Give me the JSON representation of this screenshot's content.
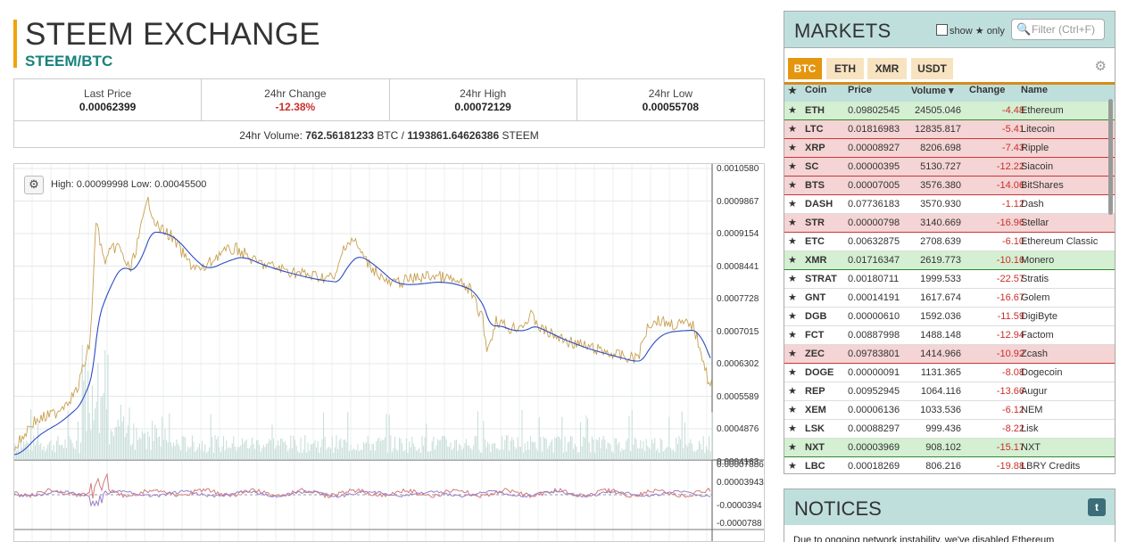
{
  "header": {
    "title": "STEEM EXCHANGE",
    "pair": "STEEM/BTC"
  },
  "stats": {
    "last_price_label": "Last Price",
    "last_price": "0.00062399",
    "change_label": "24hr Change",
    "change": "-12.38%",
    "high_label": "24hr High",
    "high": "0.00072129",
    "low_label": "24hr Low",
    "low": "0.00055708",
    "volume_prefix": "24hr Volume: ",
    "volume_btc": "762.56181233",
    "volume_btc_unit": " BTC / ",
    "volume_steem": "1193861.64626386",
    "volume_steem_unit": " STEEM"
  },
  "chart": {
    "high_low_text": "High: 0.00099998   Low: 0.00045500",
    "price_ticks": [
      "0.0010580",
      "0.0009867",
      "0.0009154",
      "0.0008441",
      "0.0007728",
      "0.0007015",
      "0.0006302",
      "0.0005589",
      "0.0004876",
      "0.0004163"
    ],
    "indicator_ticks": [
      "0.00007886",
      "0.00003943",
      "-0.0000394",
      "-0.0000788"
    ],
    "colors": {
      "candle": "#c8a050",
      "ema": "#2d4bc4",
      "volume": "#c5dcd7"
    }
  },
  "markets": {
    "title": "MARKETS",
    "show_only_prefix": "show",
    "show_only_suffix": "only",
    "filter_placeholder": "Filter (Ctrl+F)",
    "tabs": [
      "BTC",
      "ETH",
      "XMR",
      "USDT"
    ],
    "columns": {
      "coin": "Coin",
      "price": "Price",
      "volume": "Volume ▾",
      "change": "Change",
      "name": "Name"
    },
    "rows": [
      {
        "coin": "ETH",
        "price": "0.09802545",
        "volume": "24505.046",
        "change": "-4.48",
        "name": "Ethereum",
        "state": "green"
      },
      {
        "coin": "LTC",
        "price": "0.01816983",
        "volume": "12835.817",
        "change": "-5.41",
        "name": "Litecoin",
        "state": "red"
      },
      {
        "coin": "XRP",
        "price": "0.00008927",
        "volume": "8206.698",
        "change": "-7.43",
        "name": "Ripple",
        "state": "red"
      },
      {
        "coin": "SC",
        "price": "0.00000395",
        "volume": "5130.727",
        "change": "-12.22",
        "name": "Siacoin",
        "state": "red"
      },
      {
        "coin": "BTS",
        "price": "0.00007005",
        "volume": "3576.380",
        "change": "-14.06",
        "name": "BitShares",
        "state": "red"
      },
      {
        "coin": "DASH",
        "price": "0.07736183",
        "volume": "3570.930",
        "change": "-1.12",
        "name": "Dash",
        "state": "plain"
      },
      {
        "coin": "STR",
        "price": "0.00000798",
        "volume": "3140.669",
        "change": "-16.96",
        "name": "Stellar",
        "state": "red"
      },
      {
        "coin": "ETC",
        "price": "0.00632875",
        "volume": "2708.639",
        "change": "-6.10",
        "name": "Ethereum Classic",
        "state": "plain"
      },
      {
        "coin": "XMR",
        "price": "0.01716347",
        "volume": "2619.773",
        "change": "-10.16",
        "name": "Monero",
        "state": "green"
      },
      {
        "coin": "STRAT",
        "price": "0.00180711",
        "volume": "1999.533",
        "change": "-22.57",
        "name": "Stratis",
        "state": "plain"
      },
      {
        "coin": "GNT",
        "price": "0.00014191",
        "volume": "1617.674",
        "change": "-16.67",
        "name": "Golem",
        "state": "plain"
      },
      {
        "coin": "DGB",
        "price": "0.00000610",
        "volume": "1592.036",
        "change": "-11.59",
        "name": "DigiByte",
        "state": "plain"
      },
      {
        "coin": "FCT",
        "price": "0.00887998",
        "volume": "1488.148",
        "change": "-12.94",
        "name": "Factom",
        "state": "plain"
      },
      {
        "coin": "ZEC",
        "price": "0.09783801",
        "volume": "1414.966",
        "change": "-10.92",
        "name": "Zcash",
        "state": "red"
      },
      {
        "coin": "DOGE",
        "price": "0.00000091",
        "volume": "1131.365",
        "change": "-8.08",
        "name": "Dogecoin",
        "state": "plain"
      },
      {
        "coin": "REP",
        "price": "0.00952945",
        "volume": "1064.116",
        "change": "-13.66",
        "name": "Augur",
        "state": "plain"
      },
      {
        "coin": "XEM",
        "price": "0.00006136",
        "volume": "1033.536",
        "change": "-6.12",
        "name": "NEM",
        "state": "plain"
      },
      {
        "coin": "LSK",
        "price": "0.00088297",
        "volume": "999.436",
        "change": "-8.22",
        "name": "Lisk",
        "state": "plain"
      },
      {
        "coin": "NXT",
        "price": "0.00003969",
        "volume": "908.102",
        "change": "-15.17",
        "name": "NXT",
        "state": "green"
      },
      {
        "coin": "LBC",
        "price": "0.00018269",
        "volume": "806.216",
        "change": "-19.88",
        "name": "LBRY Credits",
        "state": "plain"
      }
    ]
  },
  "notices": {
    "title": "NOTICES",
    "twitter_icon": "t",
    "text": "Due to ongoing network instability, we've disabled Ethereum"
  },
  "icons": {
    "gear": "⚙",
    "search": "🔍",
    "star": "★"
  }
}
